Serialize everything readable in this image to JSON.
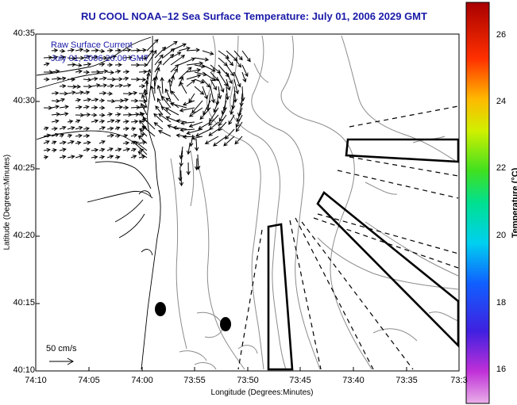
{
  "title": "RU COOL  NOAA–12  Sea Surface Temperature:  July 01, 2006 2029 GMT",
  "map": {
    "ylabel": "Latitude (Degrees:Minutes)",
    "xlabel": "Longitude (Degrees:Minutes)",
    "lat_ticks": [
      "40:35",
      "40:30",
      "40:25",
      "40:20",
      "40:15",
      "40:10"
    ],
    "lon_ticks": [
      "74:10",
      "74:05",
      "74:00",
      "73:55",
      "73:50",
      "73:45",
      "73:40",
      "73:35",
      "73:3"
    ],
    "overlay_title": "Raw Surface Current",
    "overlay_time": "July 01, 2006 20:00 GMT",
    "scale_label": "50 cm/s",
    "line_color": "#000000",
    "contour_color": "#8c8c8c",
    "text_color": "#1a1aa8"
  },
  "colorbar": {
    "label": "Temperature (°C)",
    "ticks": [
      "26",
      "24",
      "22",
      "20",
      "18",
      "16"
    ],
    "range": [
      15.2,
      27.4
    ]
  }
}
